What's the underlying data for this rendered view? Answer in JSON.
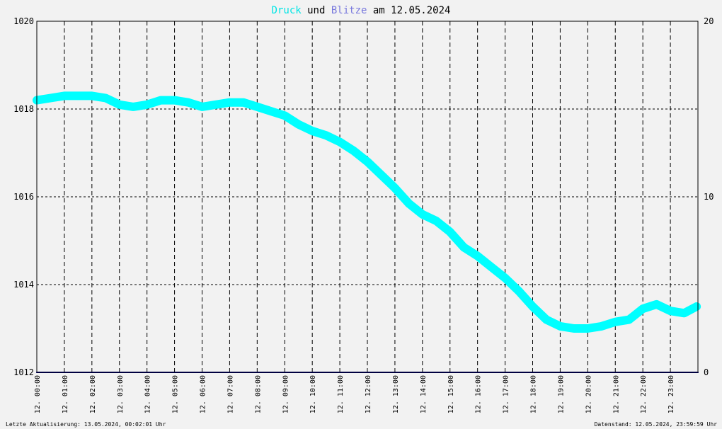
{
  "title": {
    "part1": "Druck",
    "part2": " und ",
    "part3": "Blitze",
    "part4": " am 12.05.2024",
    "part1_color": "#00e5e5",
    "part3_color": "#7777dd",
    "text_color": "#000000"
  },
  "footer": {
    "left": "Letzte Aktualisierung: 13.05.2024, 00:02:01 Uhr",
    "right": "Datenstand: 12.05.2024, 23:59:59 Uhr"
  },
  "chart_data": {
    "type": "line",
    "title": "Druck und Blitze am 12.05.2024",
    "xlabel": "",
    "ylabel": "",
    "x_range_hours": [
      0,
      24
    ],
    "x_tick_labels": [
      "12. 00:00",
      "12. 01:00",
      "12. 02:00",
      "12. 03:00",
      "12. 04:00",
      "12. 05:00",
      "12. 06:00",
      "12. 07:00",
      "12. 08:00",
      "12. 09:00",
      "12. 10:00",
      "12. 11:00",
      "12. 12:00",
      "12. 13:00",
      "12. 14:00",
      "12. 15:00",
      "12. 16:00",
      "12. 17:00",
      "12. 18:00",
      "12. 19:00",
      "12. 20:00",
      "12. 21:00",
      "12. 22:00",
      "12. 23:00"
    ],
    "y_left": {
      "min": 1012,
      "max": 1020,
      "ticks": [
        1012,
        1014,
        1016,
        1018,
        1020
      ]
    },
    "y_right": {
      "min": 0,
      "max": 20,
      "ticks": [
        0,
        10,
        20
      ]
    },
    "grid": true,
    "series": [
      {
        "name": "Druck",
        "axis": "left",
        "color": "#00ffff",
        "x_hours": [
          0,
          0.5,
          1,
          1.5,
          2,
          2.5,
          3,
          3.5,
          4,
          4.5,
          5,
          5.5,
          6,
          6.5,
          7,
          7.5,
          8,
          8.5,
          9,
          9.5,
          10,
          10.5,
          11,
          11.5,
          12,
          12.5,
          13,
          13.5,
          14,
          14.5,
          15,
          15.5,
          16,
          16.5,
          17,
          17.5,
          18,
          18.5,
          19,
          19.5,
          20,
          20.5,
          21,
          21.5,
          22,
          22.5,
          23,
          23.5,
          23.95
        ],
        "values": [
          1018.2,
          1018.25,
          1018.3,
          1018.3,
          1018.3,
          1018.25,
          1018.1,
          1018.05,
          1018.1,
          1018.2,
          1018.2,
          1018.15,
          1018.05,
          1018.1,
          1018.15,
          1018.15,
          1018.05,
          1017.95,
          1017.85,
          1017.65,
          1017.5,
          1017.4,
          1017.25,
          1017.05,
          1016.8,
          1016.5,
          1016.2,
          1015.85,
          1015.6,
          1015.45,
          1015.2,
          1014.85,
          1014.65,
          1014.4,
          1014.15,
          1013.85,
          1013.5,
          1013.2,
          1013.05,
          1013.0,
          1013.0,
          1013.05,
          1013.15,
          1013.2,
          1013.45,
          1013.55,
          1013.4,
          1013.35,
          1013.5
        ]
      },
      {
        "name": "Blitze",
        "axis": "right",
        "color": "#000080",
        "x_hours": [
          0,
          24
        ],
        "values": [
          0,
          0
        ]
      }
    ]
  }
}
